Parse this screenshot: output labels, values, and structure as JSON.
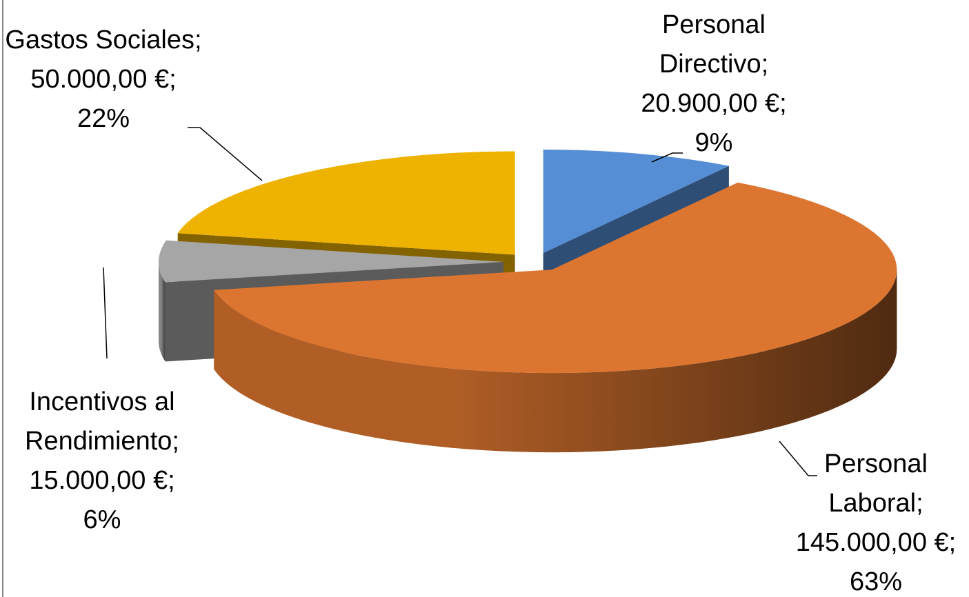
{
  "chart_data": {
    "type": "pie3d",
    "categories": [
      "Personal Directivo",
      "Personal Laboral",
      "Incentivos al Rendimiento",
      "Gastos Sociales"
    ],
    "values": [
      20900,
      145000,
      15000,
      50000
    ],
    "value_labels": [
      "20.900,00 €",
      "145.000,00 €",
      "15.000,00 €",
      "50.000,00 €"
    ],
    "percentage_labels": [
      "9%",
      "63%",
      "6%",
      "22%"
    ],
    "label_separator": ";",
    "colors": [
      "#558ed5",
      "#dc7530",
      "#a6a6a6",
      "#eeb200"
    ]
  }
}
